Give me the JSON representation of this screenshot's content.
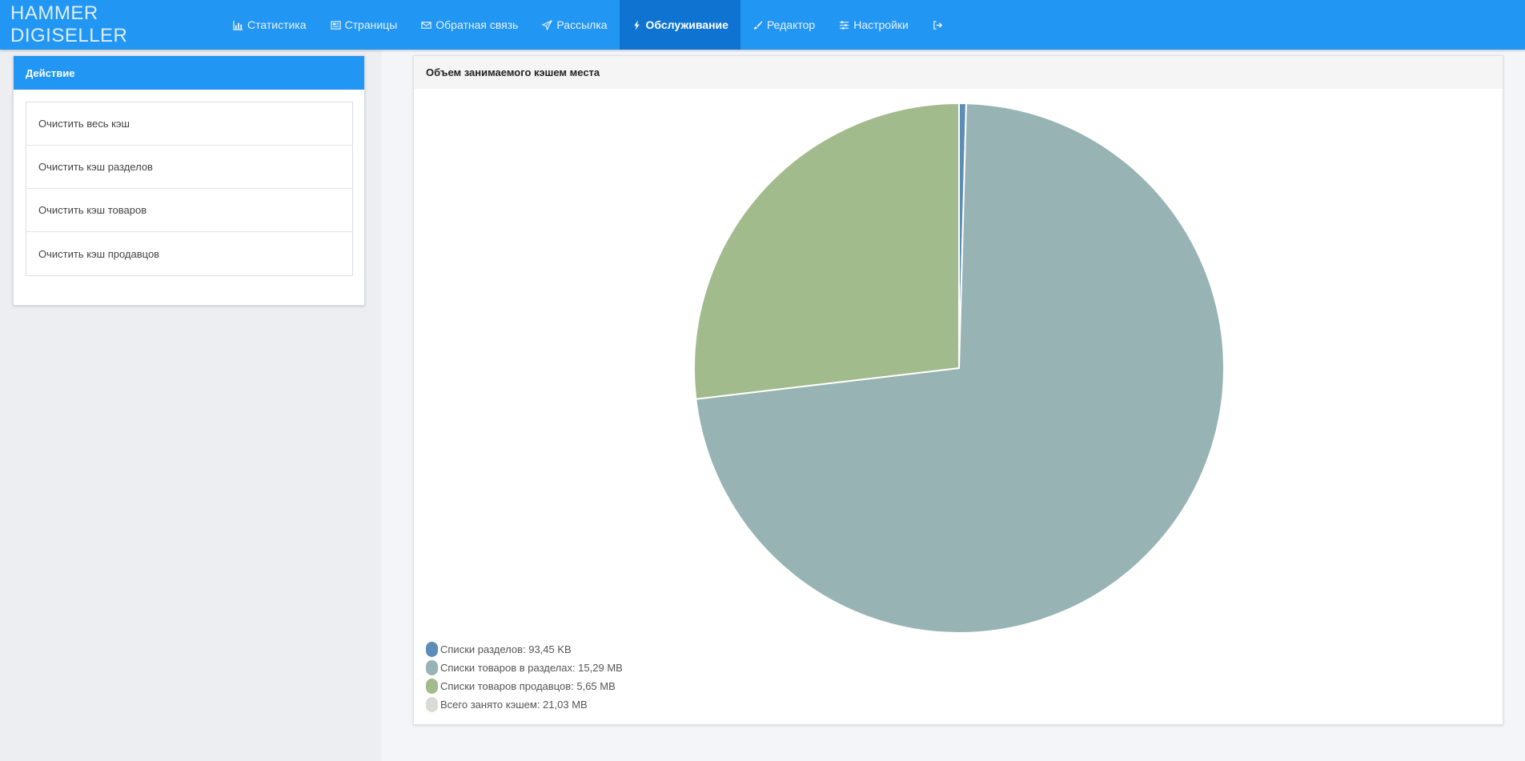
{
  "app": {
    "brand": "HAMMER DIGISELLER"
  },
  "nav": [
    {
      "label": "Статистика",
      "icon": "bar-chart-icon",
      "active": false
    },
    {
      "label": "Страницы",
      "icon": "newspaper-icon",
      "active": false
    },
    {
      "label": "Обратная связь",
      "icon": "envelope-icon",
      "active": false
    },
    {
      "label": "Рассылка",
      "icon": "paper-plane-icon",
      "active": false
    },
    {
      "label": "Обслуживание",
      "icon": "bolt-icon",
      "active": true
    },
    {
      "label": "Редактор",
      "icon": "brush-icon",
      "active": false
    },
    {
      "label": "Настройки",
      "icon": "sliders-icon",
      "active": false
    },
    {
      "label": "",
      "icon": "sign-out-icon",
      "active": false
    }
  ],
  "actions_panel": {
    "title": "Действие",
    "items": [
      "Очистить весь кэш",
      "Очистить кэш разделов",
      "Очистить кэш товаров",
      "Очистить кэш продавцов"
    ]
  },
  "chart_panel": {
    "title": "Объем занимаемого кэшем места"
  },
  "chart_data": {
    "type": "pie",
    "title": "Объем занимаемого кэшем места",
    "unit": "MB",
    "slices": [
      {
        "label": "Списки разделов: 93,45 KB",
        "value": 0.0913,
        "color": "#5b8db8"
      },
      {
        "label": "Списки товаров в разделах: 15,29 MB",
        "value": 15.29,
        "color": "#98b3b3"
      },
      {
        "label": "Списки товаров продавцов: 5,65 MB",
        "value": 5.65,
        "color": "#a2bb8c"
      }
    ],
    "legend": [
      {
        "label": "Списки разделов: 93,45 KB",
        "color": "#5b8db8"
      },
      {
        "label": "Списки товаров в разделах: 15,29 MB",
        "color": "#98b3b3"
      },
      {
        "label": "Списки товаров продавцов: 5,65 MB",
        "color": "#a2bb8c"
      },
      {
        "label": "Всего занято кэшем: 21,03 MB",
        "color": "#d9dcd4"
      }
    ],
    "legend_position": "bottom-left"
  }
}
